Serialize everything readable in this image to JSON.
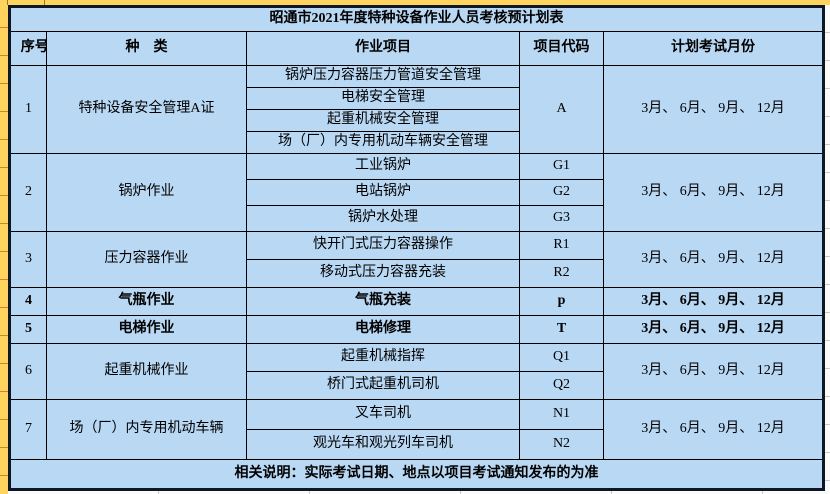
{
  "title": "昭通市2021年度特种设备作业人员考核预计划表",
  "header": {
    "index": "序号",
    "category": "种　类",
    "project": "作业项目",
    "code": "项目代码",
    "months": "计划考试月份"
  },
  "rows": [
    {
      "no": "1",
      "category": "特种设备安全管理A证",
      "bold": false,
      "code": "A",
      "months": "3月、 6月、 9月、 12月",
      "projects": [
        {
          "name": "锅炉压力容器压力管道安全管理",
          "align": "left"
        },
        {
          "name": "电梯安全管理",
          "align": "left"
        },
        {
          "name": "起重机械安全管理",
          "align": "left"
        },
        {
          "name": "场（厂）内专用机动车辆安全管理",
          "align": "left"
        }
      ]
    },
    {
      "no": "2",
      "category": "锅炉作业",
      "bold": false,
      "months": "3月、 6月、 9月、 12月",
      "projects": [
        {
          "name": "工业锅炉",
          "code": "G1",
          "align": "left"
        },
        {
          "name": "电站锅炉",
          "code": "G2",
          "align": "left"
        },
        {
          "name": "锅炉水处理",
          "code": "G3",
          "align": "left"
        }
      ]
    },
    {
      "no": "3",
      "category": "压力容器作业",
      "bold": false,
      "months": "3月、 6月、 9月、 12月",
      "projects": [
        {
          "name": "快开门式压力容器操作",
          "code": "R1",
          "align": "left"
        },
        {
          "name": "移动式压力容器充装",
          "code": "R2",
          "align": "left"
        }
      ]
    },
    {
      "no": "4",
      "category": "气瓶作业",
      "bold": true,
      "months": "3月、 6月、 9月、 12月",
      "projects": [
        {
          "name": "气瓶充装",
          "code": "p",
          "align": "center"
        }
      ]
    },
    {
      "no": "5",
      "category": "电梯作业",
      "bold": true,
      "months": "3月、 6月、 9月、 12月",
      "projects": [
        {
          "name": "电梯修理",
          "code": "T",
          "align": "center"
        }
      ]
    },
    {
      "no": "6",
      "category": "起重机械作业",
      "bold": false,
      "months": "3月、 6月、 9月、 12月",
      "projects": [
        {
          "name": "起重机械指挥",
          "code": "Q1",
          "align": "left"
        },
        {
          "name": "桥门式起重机司机",
          "code": "Q2",
          "align": "left"
        }
      ]
    },
    {
      "no": "7",
      "category": "场（厂）内专用机动车辆",
      "bold": false,
      "months": "3月、 6月、 9月、 12月",
      "projects": [
        {
          "name": "叉车司机",
          "code": "N1",
          "align": "left"
        },
        {
          "name": "观光车和观光列车司机",
          "code": "N2",
          "align": "center"
        }
      ]
    }
  ],
  "footer": "相关说明：实际考试日期、地点以项目考试通知发布的为准",
  "colors": {
    "cell_blue": "#B9D8F4",
    "margin_gold": "#FFD45E",
    "margin_gold_line": "#C8882F",
    "border_dark": "#0E1726",
    "border_group": "#17294A"
  }
}
